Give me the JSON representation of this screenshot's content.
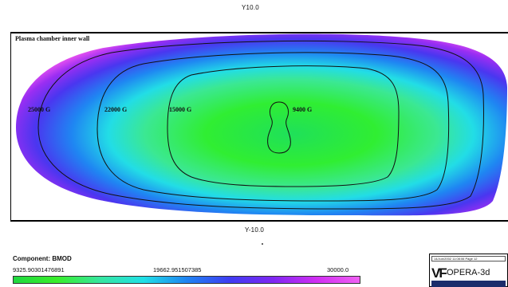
{
  "header": {
    "position_label": "Y10.0"
  },
  "plot": {
    "title": "Plasma chamber inner wall",
    "contour_labels": [
      {
        "id": "c1",
        "text": "25000 G"
      },
      {
        "id": "c2",
        "text": "22000 G"
      },
      {
        "id": "c3",
        "text": "15000 G"
      },
      {
        "id": "c4",
        "text": "9400 G"
      }
    ]
  },
  "footer": {
    "position_label": "Y-10.0"
  },
  "legend": {
    "component": "Component: BMOD",
    "min_value": "9325.90301476891",
    "mid_value": "19662.951507385",
    "max_value": "30000.0",
    "colors": [
      "#20d840",
      "#39ee2a",
      "#36e6a0",
      "#20e0e6",
      "#1f84f2",
      "#3f3cf2",
      "#7f27f2",
      "#d02ef2",
      "#f060f2"
    ]
  },
  "stamp": {
    "date_text": "14/Jun/2002 11:08:06 Page 12",
    "logo_text": "OPERA-3d",
    "logo_mark": "VF"
  }
}
